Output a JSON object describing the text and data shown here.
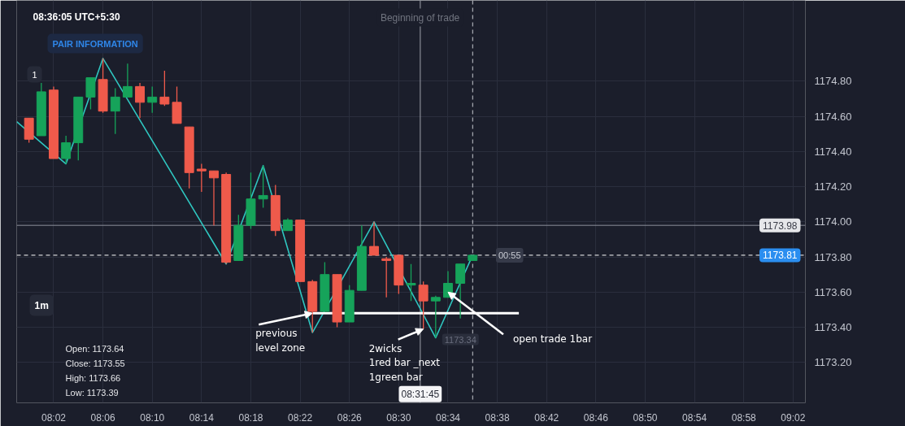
{
  "chart_data": {
    "type": "candlestick",
    "x": [
      8.0,
      8.016667,
      8.033333,
      8.05,
      8.066667,
      8.083333,
      8.1,
      8.116667,
      8.133333,
      8.15,
      8.166667,
      8.183333,
      8.2,
      8.216667,
      8.233333,
      8.25,
      8.266667,
      8.283333,
      8.3,
      8.316667,
      8.333333,
      8.35,
      8.366667,
      8.383333,
      8.4,
      8.416667,
      8.433333,
      8.45,
      8.466667,
      8.483333,
      8.5,
      8.516667,
      8.533333,
      8.55,
      8.566667,
      8.583333,
      8.6
    ],
    "ohlc": [
      [
        1174.59,
        1174.59,
        1174.45,
        1174.47
      ],
      [
        1174.49,
        1174.79,
        1174.49,
        1174.74
      ],
      [
        1174.75,
        1174.77,
        1174.36,
        1174.36
      ],
      [
        1174.36,
        1174.49,
        1174.33,
        1174.45
      ],
      [
        1174.45,
        1174.71,
        1174.35,
        1174.71
      ],
      [
        1174.71,
        1174.82,
        1174.64,
        1174.82
      ],
      [
        1174.81,
        1174.93,
        1174.62,
        1174.63
      ],
      [
        1174.63,
        1174.76,
        1174.5,
        1174.71
      ],
      [
        1174.71,
        1174.9,
        1174.71,
        1174.77
      ],
      [
        1174.77,
        1174.79,
        1174.59,
        1174.68
      ],
      [
        1174.68,
        1174.77,
        1174.62,
        1174.71
      ],
      [
        1174.71,
        1174.86,
        1174.66,
        1174.67
      ],
      [
        1174.68,
        1174.77,
        1174.56,
        1174.56
      ],
      [
        1174.54,
        1174.54,
        1174.19,
        1174.28
      ],
      [
        1174.3,
        1174.33,
        1174.17,
        1174.29
      ],
      [
        1174.29,
        1174.29,
        1173.98,
        1174.25
      ],
      [
        1174.27,
        1174.28,
        1173.76,
        1173.77
      ],
      [
        1173.78,
        1174.04,
        1173.78,
        1173.98
      ],
      [
        1173.98,
        1174.28,
        1173.96,
        1174.13
      ],
      [
        1174.13,
        1174.32,
        1174.08,
        1174.15
      ],
      [
        1174.15,
        1174.21,
        1173.92,
        1173.95
      ],
      [
        1173.95,
        1174.02,
        1173.95,
        1174.01
      ],
      [
        1174.01,
        1174.01,
        1173.66,
        1173.66
      ],
      [
        1173.66,
        1173.67,
        1173.37,
        1173.49
      ],
      [
        1173.49,
        1173.77,
        1173.49,
        1173.7
      ],
      [
        1173.7,
        1173.7,
        1173.4,
        1173.43
      ],
      [
        1173.43,
        1173.64,
        1173.43,
        1173.61
      ],
      [
        1173.61,
        1173.98,
        1173.61,
        1173.86
      ],
      [
        1173.86,
        1174.0,
        1173.81,
        1173.81
      ],
      [
        1173.79,
        1173.8,
        1173.57,
        1173.78
      ],
      [
        1173.81,
        1173.81,
        1173.59,
        1173.64
      ],
      [
        1173.64,
        1173.76,
        1173.55,
        1173.65
      ],
      [
        1173.64,
        1173.66,
        1173.39,
        1173.55
      ],
      [
        1173.55,
        1173.58,
        1173.34,
        1173.57
      ],
      [
        1173.57,
        1173.72,
        1173.57,
        1173.65
      ],
      [
        1173.65,
        1173.76,
        1173.45,
        1173.76
      ],
      [
        1173.78,
        1173.81,
        1173.78,
        1173.81
      ]
    ],
    "colors": [
      "#ef5a4b",
      "#16a35a",
      "#ef5a4b",
      "#16a35a",
      "#16a35a",
      "#16a35a",
      "#ef5a4b",
      "#16a35a",
      "#16a35a",
      "#ef5a4b",
      "#16a35a",
      "#ef5a4b",
      "#ef5a4b",
      "#ef5a4b",
      "#ef5a4b",
      "#ef5a4b",
      "#ef5a4b",
      "#16a35a",
      "#16a35a",
      "#16a35a",
      "#ef5a4b",
      "#16a35a",
      "#ef5a4b",
      "#ef5a4b",
      "#16a35a",
      "#ef5a4b",
      "#16a35a",
      "#16a35a",
      "#ef5a4b",
      "#ef5a4b",
      "#ef5a4b",
      "#16a35a",
      "#ef5a4b",
      "#16a35a",
      "#16a35a",
      "#16a35a",
      "#16a35a"
    ],
    "series": [
      {
        "type": "line",
        "color": "#2fc6c0",
        "x": [
          7.983333,
          8.05,
          8.1,
          8.266667,
          8.316667,
          8.383333,
          8.466667,
          8.55,
          8.6
        ],
        "values": [
          1174.57,
          1174.33,
          1174.93,
          1173.76,
          1174.32,
          1173.37,
          1174.0,
          1173.34,
          1173.81
        ]
      },
      {
        "type": "line",
        "color": "#ffffff",
        "x": [
          8.383333,
          8.6625
        ],
        "values": [
          1173.48,
          1173.48
        ]
      }
    ],
    "xlim": [
      7.983333,
      9.05
    ],
    "ylim": [
      1172.97,
      1175.26
    ],
    "xticks": [
      {
        "value": 8.033333,
        "label": "08:02"
      },
      {
        "value": 8.1,
        "label": "08:06"
      },
      {
        "value": 8.166667,
        "label": "08:10"
      },
      {
        "value": 8.233333,
        "label": "08:14"
      },
      {
        "value": 8.3,
        "label": "08:18"
      },
      {
        "value": 8.366667,
        "label": "08:22"
      },
      {
        "value": 8.433333,
        "label": "08:26"
      },
      {
        "value": 8.5,
        "label": "08:30"
      },
      {
        "value": 8.566667,
        "label": "08:34"
      },
      {
        "value": 8.633333,
        "label": "08:38"
      },
      {
        "value": 8.7,
        "label": "08:42"
      },
      {
        "value": 8.766667,
        "label": "08:46"
      },
      {
        "value": 8.833333,
        "label": "08:50"
      },
      {
        "value": 8.9,
        "label": "08:54"
      },
      {
        "value": 8.966667,
        "label": "08:58"
      },
      {
        "value": 9.033333,
        "label": "09:02"
      }
    ],
    "yticks": [
      {
        "value": 1173.2,
        "label": "1173.20"
      },
      {
        "value": 1173.4,
        "label": "1173.40"
      },
      {
        "value": 1173.6,
        "label": "1173.60"
      },
      {
        "value": 1173.8,
        "label": "1173.80"
      },
      {
        "value": 1174.0,
        "label": "1174.00"
      },
      {
        "value": 1174.2,
        "label": "1174.20"
      },
      {
        "value": 1174.4,
        "label": "1174.40"
      },
      {
        "value": 1174.6,
        "label": "1174.60"
      },
      {
        "value": 1174.8,
        "label": "1174.80"
      }
    ],
    "grid": true,
    "ref_lines": [
      {
        "axis": "y",
        "value": 1173.98,
        "label": "1173.98",
        "color": "#8e919b",
        "line_style": "solid"
      },
      {
        "axis": "y",
        "value": 1173.81,
        "label": "1173.81",
        "color": "#ffffff",
        "line_style": "dashed"
      },
      {
        "axis": "x",
        "value": 8.6,
        "label": "Beginning of trade",
        "color": "#c9cbd2",
        "line_style": "dashed"
      },
      {
        "axis": "x",
        "value": 8.5291667,
        "color": "#9ea1ab",
        "line_style": "solid"
      }
    ],
    "annotations": [
      "08:36:05 UTC+5:30",
      "PAIR INFORMATION",
      "1",
      "1m",
      "Open: 1173.64",
      "Close: 1173.55",
      "High: 1173.66",
      "Low: 1173.39",
      {
        "text": "previous\nlevel zone",
        "x": 8.383333,
        "y": 1173.48
      },
      {
        "text": "2wicks\n1red bar _next\n1green bar",
        "x": 8.533333,
        "y": 1173.39
      },
      {
        "text": "open trade 1bar",
        "x": 8.566667,
        "y": 1173.6
      },
      {
        "text": "1173.34",
        "x": 8.55,
        "y": 1173.34
      },
      {
        "text": "00:55",
        "x": 8.65,
        "y": 1173.81
      },
      {
        "text": "08:31:45",
        "x": 8.5291667,
        "y": 1173.02
      }
    ]
  }
}
